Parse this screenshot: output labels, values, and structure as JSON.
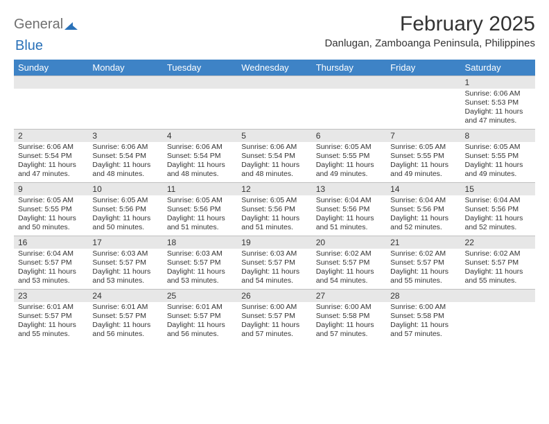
{
  "logo": {
    "general": "General",
    "blue": "Blue"
  },
  "title": "February 2025",
  "location": "Danlugan, Zamboanga Peninsula, Philippines",
  "colors": {
    "header_bg": "#3e83c6",
    "header_text": "#ffffff",
    "daynum_bg": "#e7e7e7",
    "border": "#c0c0c0",
    "body_text": "#333333",
    "logo_gray": "#6f6f6f",
    "logo_blue": "#2a71b8"
  },
  "typography": {
    "title_fontsize": 30,
    "location_fontsize": 15,
    "dow_fontsize": 13,
    "daynum_fontsize": 12,
    "body_fontsize": 10.5
  },
  "days_of_week": [
    "Sunday",
    "Monday",
    "Tuesday",
    "Wednesday",
    "Thursday",
    "Friday",
    "Saturday"
  ],
  "weeks": [
    [
      {
        "num": "",
        "lines": []
      },
      {
        "num": "",
        "lines": []
      },
      {
        "num": "",
        "lines": []
      },
      {
        "num": "",
        "lines": []
      },
      {
        "num": "",
        "lines": []
      },
      {
        "num": "",
        "lines": []
      },
      {
        "num": "1",
        "lines": [
          "Sunrise: 6:06 AM",
          "Sunset: 5:53 PM",
          "Daylight: 11 hours and 47 minutes."
        ]
      }
    ],
    [
      {
        "num": "2",
        "lines": [
          "Sunrise: 6:06 AM",
          "Sunset: 5:54 PM",
          "Daylight: 11 hours and 47 minutes."
        ]
      },
      {
        "num": "3",
        "lines": [
          "Sunrise: 6:06 AM",
          "Sunset: 5:54 PM",
          "Daylight: 11 hours and 48 minutes."
        ]
      },
      {
        "num": "4",
        "lines": [
          "Sunrise: 6:06 AM",
          "Sunset: 5:54 PM",
          "Daylight: 11 hours and 48 minutes."
        ]
      },
      {
        "num": "5",
        "lines": [
          "Sunrise: 6:06 AM",
          "Sunset: 5:54 PM",
          "Daylight: 11 hours and 48 minutes."
        ]
      },
      {
        "num": "6",
        "lines": [
          "Sunrise: 6:05 AM",
          "Sunset: 5:55 PM",
          "Daylight: 11 hours and 49 minutes."
        ]
      },
      {
        "num": "7",
        "lines": [
          "Sunrise: 6:05 AM",
          "Sunset: 5:55 PM",
          "Daylight: 11 hours and 49 minutes."
        ]
      },
      {
        "num": "8",
        "lines": [
          "Sunrise: 6:05 AM",
          "Sunset: 5:55 PM",
          "Daylight: 11 hours and 49 minutes."
        ]
      }
    ],
    [
      {
        "num": "9",
        "lines": [
          "Sunrise: 6:05 AM",
          "Sunset: 5:55 PM",
          "Daylight: 11 hours and 50 minutes."
        ]
      },
      {
        "num": "10",
        "lines": [
          "Sunrise: 6:05 AM",
          "Sunset: 5:56 PM",
          "Daylight: 11 hours and 50 minutes."
        ]
      },
      {
        "num": "11",
        "lines": [
          "Sunrise: 6:05 AM",
          "Sunset: 5:56 PM",
          "Daylight: 11 hours and 51 minutes."
        ]
      },
      {
        "num": "12",
        "lines": [
          "Sunrise: 6:05 AM",
          "Sunset: 5:56 PM",
          "Daylight: 11 hours and 51 minutes."
        ]
      },
      {
        "num": "13",
        "lines": [
          "Sunrise: 6:04 AM",
          "Sunset: 5:56 PM",
          "Daylight: 11 hours and 51 minutes."
        ]
      },
      {
        "num": "14",
        "lines": [
          "Sunrise: 6:04 AM",
          "Sunset: 5:56 PM",
          "Daylight: 11 hours and 52 minutes."
        ]
      },
      {
        "num": "15",
        "lines": [
          "Sunrise: 6:04 AM",
          "Sunset: 5:56 PM",
          "Daylight: 11 hours and 52 minutes."
        ]
      }
    ],
    [
      {
        "num": "16",
        "lines": [
          "Sunrise: 6:04 AM",
          "Sunset: 5:57 PM",
          "Daylight: 11 hours and 53 minutes."
        ]
      },
      {
        "num": "17",
        "lines": [
          "Sunrise: 6:03 AM",
          "Sunset: 5:57 PM",
          "Daylight: 11 hours and 53 minutes."
        ]
      },
      {
        "num": "18",
        "lines": [
          "Sunrise: 6:03 AM",
          "Sunset: 5:57 PM",
          "Daylight: 11 hours and 53 minutes."
        ]
      },
      {
        "num": "19",
        "lines": [
          "Sunrise: 6:03 AM",
          "Sunset: 5:57 PM",
          "Daylight: 11 hours and 54 minutes."
        ]
      },
      {
        "num": "20",
        "lines": [
          "Sunrise: 6:02 AM",
          "Sunset: 5:57 PM",
          "Daylight: 11 hours and 54 minutes."
        ]
      },
      {
        "num": "21",
        "lines": [
          "Sunrise: 6:02 AM",
          "Sunset: 5:57 PM",
          "Daylight: 11 hours and 55 minutes."
        ]
      },
      {
        "num": "22",
        "lines": [
          "Sunrise: 6:02 AM",
          "Sunset: 5:57 PM",
          "Daylight: 11 hours and 55 minutes."
        ]
      }
    ],
    [
      {
        "num": "23",
        "lines": [
          "Sunrise: 6:01 AM",
          "Sunset: 5:57 PM",
          "Daylight: 11 hours and 55 minutes."
        ]
      },
      {
        "num": "24",
        "lines": [
          "Sunrise: 6:01 AM",
          "Sunset: 5:57 PM",
          "Daylight: 11 hours and 56 minutes."
        ]
      },
      {
        "num": "25",
        "lines": [
          "Sunrise: 6:01 AM",
          "Sunset: 5:57 PM",
          "Daylight: 11 hours and 56 minutes."
        ]
      },
      {
        "num": "26",
        "lines": [
          "Sunrise: 6:00 AM",
          "Sunset: 5:57 PM",
          "Daylight: 11 hours and 57 minutes."
        ]
      },
      {
        "num": "27",
        "lines": [
          "Sunrise: 6:00 AM",
          "Sunset: 5:58 PM",
          "Daylight: 11 hours and 57 minutes."
        ]
      },
      {
        "num": "28",
        "lines": [
          "Sunrise: 6:00 AM",
          "Sunset: 5:58 PM",
          "Daylight: 11 hours and 57 minutes."
        ]
      },
      {
        "num": "",
        "lines": []
      }
    ]
  ]
}
